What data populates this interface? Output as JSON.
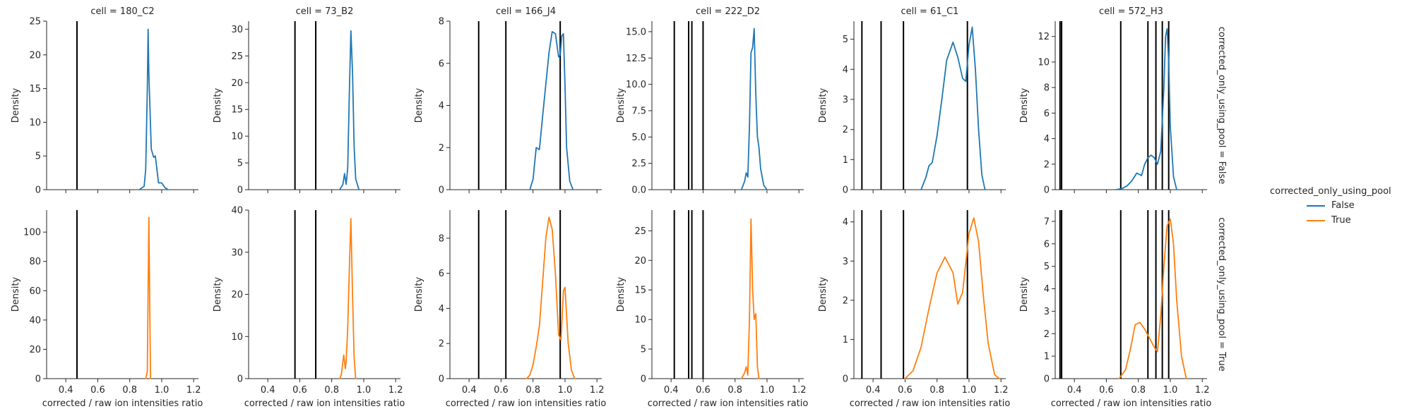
{
  "chart_data": {
    "type": "line",
    "colors": {
      "False": "#1f77b4",
      "True": "#ff7f0e",
      "vline": "#000000"
    },
    "hue_variable": "corrected_only_using_pool",
    "xlabel": "corrected / raw ion intensities ratio",
    "ylabel": "Density",
    "xlim": [
      0.28,
      1.23
    ],
    "xticks": [
      0.4,
      0.6,
      0.8,
      1.0,
      1.2
    ],
    "xtick_labels": [
      "0.4",
      "0.6",
      "0.8",
      "1.0",
      "1.2"
    ],
    "row_labels": [
      "corrected_only_using_pool = False",
      "corrected_only_using_pool = True"
    ],
    "legend": {
      "title": "corrected_only_using_pool",
      "entries": [
        "False",
        "True"
      ],
      "placement": "center-right"
    },
    "panels": [
      {
        "title": "cell = 180_C2",
        "vlines": [
          0.47
        ],
        "rows": [
          {
            "ylim": [
              0,
              25
            ],
            "yticks": [
              0,
              5,
              10,
              15,
              20,
              25
            ],
            "ytick_labels": [
              "0",
              "5",
              "10",
              "15",
              "20",
              "25"
            ],
            "series": [
              {
                "name": "False",
                "x": [
                  0.86,
                  0.89,
                  0.9,
                  0.91,
                  0.915,
                  0.92,
                  0.935,
                  0.95,
                  0.96,
                  0.97,
                  0.98,
                  1.0,
                  1.02,
                  1.04
                ],
                "y": [
                  0,
                  0.5,
                  3,
                  15,
                  23.8,
                  17,
                  6,
                  4.8,
                  5,
                  3,
                  1,
                  1,
                  0.3,
                  0
                ]
              }
            ]
          },
          {
            "ylim": [
              0,
              115
            ],
            "yticks": [
              0,
              20,
              40,
              60,
              80,
              100
            ],
            "ytick_labels": [
              "0",
              "20",
              "40",
              "60",
              "80",
              "100"
            ],
            "series": [
              {
                "name": "True",
                "x": [
                  0.9,
                  0.91,
                  0.915,
                  0.92,
                  0.925,
                  0.93
                ],
                "y": [
                  0,
                  5,
                  60,
                  110,
                  50,
                  0
                ]
              }
            ]
          }
        ]
      },
      {
        "title": "cell = 73_B2",
        "vlines": [
          0.57,
          0.7
        ],
        "rows": [
          {
            "ylim": [
              0,
              31.5
            ],
            "yticks": [
              0,
              5,
              10,
              15,
              20,
              25,
              30
            ],
            "ytick_labels": [
              "0",
              "5",
              "10",
              "15",
              "20",
              "25",
              "30"
            ],
            "series": [
              {
                "name": "False",
                "x": [
                  0.85,
                  0.87,
                  0.88,
                  0.89,
                  0.9,
                  0.91,
                  0.92,
                  0.93,
                  0.94,
                  0.95,
                  0.97
                ],
                "y": [
                  0,
                  1,
                  3,
                  1,
                  4,
                  18,
                  29.7,
                  22,
                  8,
                  2,
                  0
                ]
              }
            ]
          },
          {
            "ylim": [
              0,
              40
            ],
            "yticks": [
              0,
              10,
              20,
              30,
              40
            ],
            "ytick_labels": [
              "0",
              "10",
              "20",
              "30",
              "40"
            ],
            "series": [
              {
                "name": "True",
                "x": [
                  0.85,
                  0.86,
                  0.87,
                  0.875,
                  0.88,
                  0.885,
                  0.89,
                  0.9,
                  0.91,
                  0.92,
                  0.93,
                  0.94,
                  0.95
                ],
                "y": [
                  0,
                  1,
                  4,
                  5.6,
                  4,
                  2.4,
                  4,
                  12,
                  26,
                  38,
                  20,
                  5,
                  0
                ]
              }
            ]
          }
        ]
      },
      {
        "title": "cell = 166_J4",
        "vlines": [
          0.46,
          0.63,
          0.97
        ],
        "rows": [
          {
            "ylim": [
              0,
              8
            ],
            "yticks": [
              0,
              2,
              4,
              6,
              8
            ],
            "ytick_labels": [
              "0",
              "2",
              "4",
              "6",
              "8"
            ],
            "series": [
              {
                "name": "False",
                "x": [
                  0.78,
                  0.8,
                  0.82,
                  0.84,
                  0.86,
                  0.88,
                  0.9,
                  0.92,
                  0.94,
                  0.96,
                  0.97,
                  0.98,
                  0.99,
                  1.0,
                  1.01,
                  1.03,
                  1.05
                ],
                "y": [
                  0,
                  0.5,
                  2,
                  1.9,
                  3.5,
                  5,
                  6.5,
                  7.5,
                  7.4,
                  6.3,
                  6.4,
                  7.3,
                  7.4,
                  5,
                  2,
                  0.4,
                  0
                ]
              }
            ]
          },
          {
            "ylim": [
              0,
              9.6
            ],
            "yticks": [
              0,
              2,
              4,
              6,
              8
            ],
            "ytick_labels": [
              "0",
              "2",
              "4",
              "6",
              "8"
            ],
            "series": [
              {
                "name": "True",
                "x": [
                  0.76,
                  0.78,
                  0.8,
                  0.82,
                  0.84,
                  0.86,
                  0.88,
                  0.9,
                  0.92,
                  0.94,
                  0.96,
                  0.975,
                  0.99,
                  1.0,
                  1.02,
                  1.04,
                  1.06
                ],
                "y": [
                  0,
                  0.2,
                  0.8,
                  1.8,
                  3,
                  5.5,
                  8,
                  9.2,
                  8.5,
                  6,
                  2.5,
                  2.2,
                  5,
                  5.2,
                  2,
                  0.5,
                  0
                ]
              }
            ]
          }
        ]
      },
      {
        "title": "cell = 222_D2",
        "vlines": [
          0.42,
          0.51,
          0.53,
          0.6
        ],
        "rows": [
          {
            "ylim": [
              0,
              16
            ],
            "yticks": [
              0,
              2.5,
              5,
              7.5,
              10,
              12.5,
              15
            ],
            "ytick_labels": [
              "0.0",
              "2.5",
              "5.0",
              "7.5",
              "10.0",
              "12.5",
              "15.0"
            ],
            "series": [
              {
                "name": "False",
                "x": [
                  0.84,
                  0.86,
                  0.87,
                  0.88,
                  0.89,
                  0.9,
                  0.91,
                  0.92,
                  0.93,
                  0.94,
                  0.95,
                  0.96,
                  0.98,
                  1.0
                ],
                "y": [
                  0,
                  0.8,
                  1.6,
                  1.2,
                  6,
                  13,
                  13.5,
                  15.3,
                  9,
                  5,
                  4,
                  2,
                  0.4,
                  0
                ]
              }
            ]
          },
          {
            "ylim": [
              0,
              28.5
            ],
            "yticks": [
              0,
              5,
              10,
              15,
              20,
              25
            ],
            "ytick_labels": [
              "0",
              "5",
              "10",
              "15",
              "20",
              "25"
            ],
            "series": [
              {
                "name": "True",
                "x": [
                  0.84,
                  0.86,
                  0.87,
                  0.88,
                  0.89,
                  0.9,
                  0.91,
                  0.92,
                  0.93,
                  0.94,
                  0.95
                ],
                "y": [
                  0,
                  1,
                  2,
                  0.6,
                  10,
                  27,
                  15,
                  10,
                  11,
                  2,
                  0
                ]
              }
            ]
          }
        ]
      },
      {
        "title": "cell = 61_C1",
        "vlines": [
          0.33,
          0.45,
          0.59,
          0.99
        ],
        "rows": [
          {
            "ylim": [
              0,
              5.6
            ],
            "yticks": [
              0,
              1,
              2,
              3,
              4,
              5
            ],
            "ytick_labels": [
              "0",
              "1",
              "2",
              "3",
              "4",
              "5"
            ],
            "series": [
              {
                "name": "False",
                "x": [
                  0.7,
                  0.73,
                  0.75,
                  0.77,
                  0.8,
                  0.83,
                  0.86,
                  0.9,
                  0.93,
                  0.96,
                  0.98,
                  1.0,
                  1.02,
                  1.04,
                  1.06,
                  1.08,
                  1.1
                ],
                "y": [
                  0,
                  0.4,
                  0.8,
                  0.9,
                  1.8,
                  3,
                  4.3,
                  4.9,
                  4.4,
                  3.7,
                  3.6,
                  4.8,
                  5.4,
                  4,
                  2,
                  0.5,
                  0
                ]
              }
            ]
          },
          {
            "ylim": [
              0,
              4.3
            ],
            "yticks": [
              0,
              1,
              2,
              3,
              4
            ],
            "ytick_labels": [
              "0",
              "1",
              "2",
              "3",
              "4"
            ],
            "series": [
              {
                "name": "True",
                "x": [
                  0.6,
                  0.65,
                  0.7,
                  0.75,
                  0.8,
                  0.85,
                  0.9,
                  0.93,
                  0.96,
                  1.0,
                  1.03,
                  1.06,
                  1.09,
                  1.12,
                  1.16,
                  1.19
                ],
                "y": [
                  0,
                  0.2,
                  0.8,
                  1.8,
                  2.7,
                  3.1,
                  2.7,
                  1.9,
                  2.2,
                  3.7,
                  4.1,
                  3.5,
                  2.1,
                  0.9,
                  0.1,
                  0
                ]
              }
            ]
          }
        ]
      },
      {
        "title": "cell = 572_H3",
        "vlines": [
          0.31,
          0.32,
          0.69,
          0.86,
          0.91,
          0.95,
          0.99
        ],
        "rows": [
          {
            "ylim": [
              0,
              13.2
            ],
            "yticks": [
              0,
              2,
              4,
              6,
              8,
              10,
              12
            ],
            "ytick_labels": [
              "0",
              "2",
              "4",
              "6",
              "8",
              "10",
              "12"
            ],
            "series": [
              {
                "name": "False",
                "x": [
                  0.66,
                  0.7,
                  0.73,
                  0.76,
                  0.79,
                  0.82,
                  0.84,
                  0.86,
                  0.88,
                  0.9,
                  0.92,
                  0.94,
                  0.96,
                  0.97,
                  0.98,
                  0.99,
                  1.0,
                  1.02,
                  1.04
                ],
                "y": [
                  0,
                  0.1,
                  0.3,
                  0.7,
                  1.3,
                  1.1,
                  2,
                  2.5,
                  2.7,
                  2.5,
                  2,
                  3,
                  8,
                  12,
                  12.6,
                  10,
                  5,
                  1,
                  0
                ]
              }
            ]
          },
          {
            "ylim": [
              0,
              7.5
            ],
            "yticks": [
              0,
              1,
              2,
              3,
              4,
              5,
              6,
              7
            ],
            "ytick_labels": [
              "0",
              "1",
              "2",
              "3",
              "4",
              "5",
              "6",
              "7"
            ],
            "series": [
              {
                "name": "True",
                "x": [
                  0.68,
                  0.72,
                  0.75,
                  0.78,
                  0.81,
                  0.84,
                  0.87,
                  0.9,
                  0.92,
                  0.94,
                  0.96,
                  0.98,
                  1.0,
                  1.02,
                  1.04,
                  1.07,
                  1.1
                ],
                "y": [
                  0,
                  0.4,
                  1.3,
                  2.4,
                  2.5,
                  2.2,
                  1.8,
                  1.4,
                  1.2,
                  2.8,
                  5,
                  6.8,
                  7.1,
                  6,
                  3.5,
                  1,
                  0
                ]
              }
            ]
          }
        ]
      }
    ]
  }
}
